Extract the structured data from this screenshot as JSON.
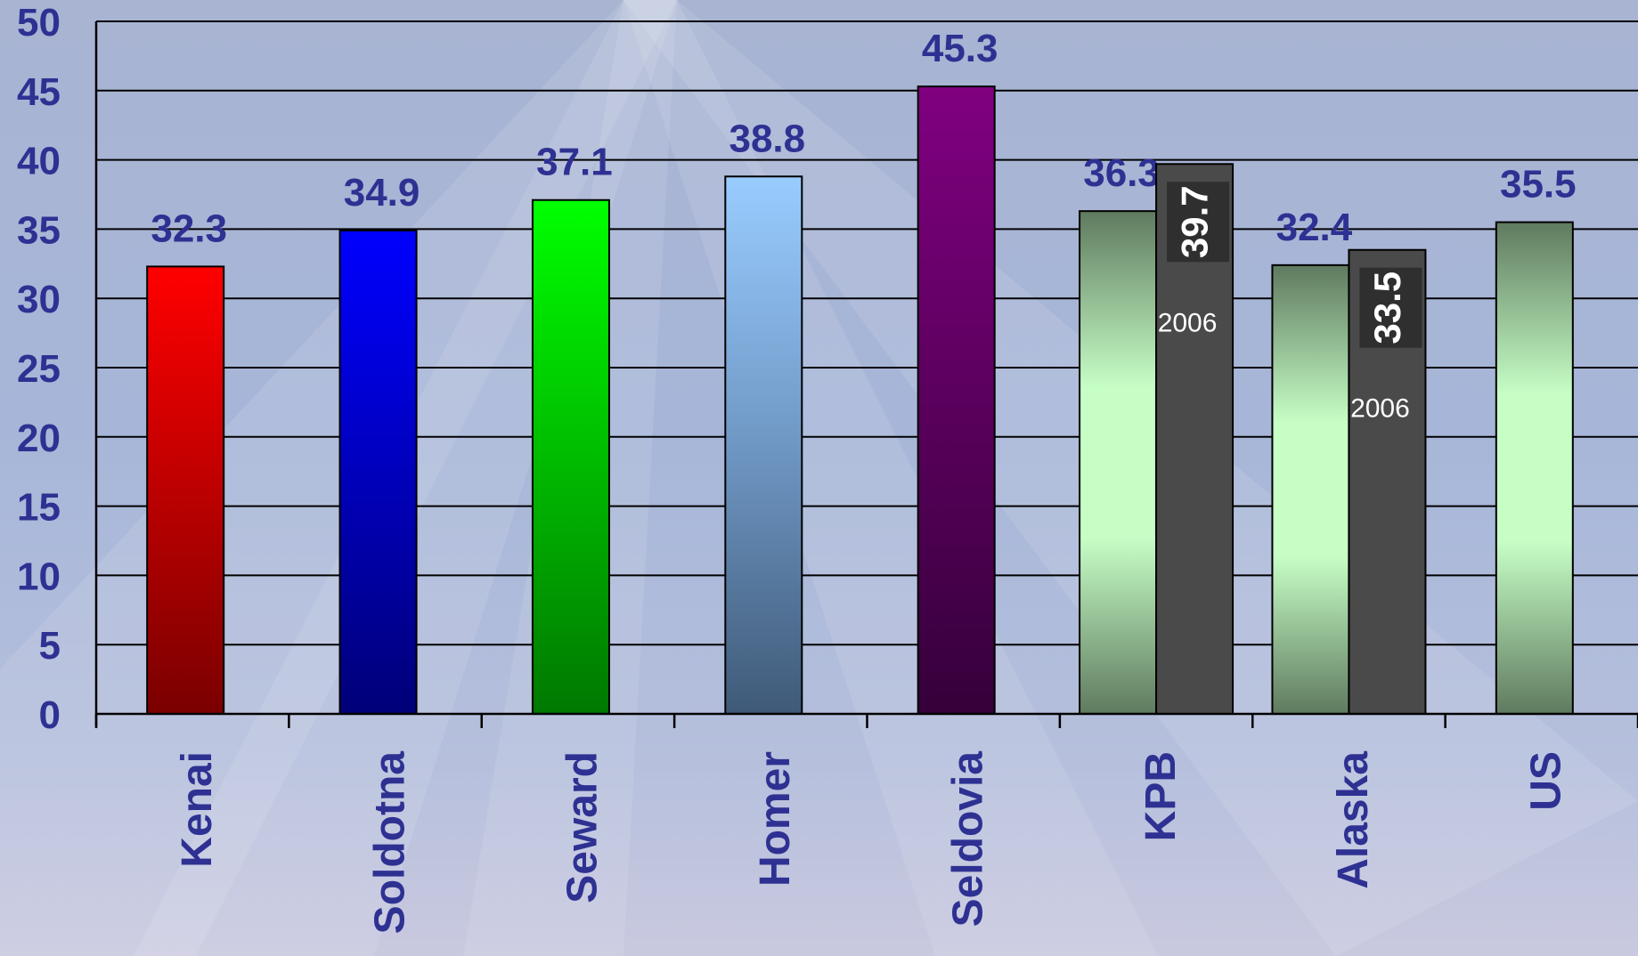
{
  "chart_data": {
    "type": "bar",
    "title": "",
    "xlabel": "",
    "ylabel": "",
    "ylim": [
      0,
      50
    ],
    "yticks": [
      0,
      5,
      10,
      15,
      20,
      25,
      30,
      35,
      40,
      45,
      50
    ],
    "grid": true,
    "categories": [
      "Kenai",
      "Soldotna",
      "Seward",
      "Homer",
      "Seldovia",
      "KPB",
      "Alaska",
      "US"
    ],
    "values": [
      32.3,
      34.9,
      37.1,
      38.8,
      45.3,
      36.3,
      32.4,
      35.5
    ],
    "value_labels": [
      "32.3",
      "34.9",
      "37.1",
      "38.8",
      "45.3",
      "36.3",
      "32.4",
      "35.5"
    ],
    "bar_colors": [
      "red",
      "blue",
      "green",
      "light-blue",
      "purple",
      "sage-green",
      "sage-green",
      "sage-green"
    ],
    "overlay_bars": [
      {
        "category": "KPB",
        "value": 39.7,
        "label": "39.7",
        "year": "2006"
      },
      {
        "category": "Alaska",
        "value": 33.5,
        "label": "33.5",
        "year": "2006"
      }
    ]
  }
}
